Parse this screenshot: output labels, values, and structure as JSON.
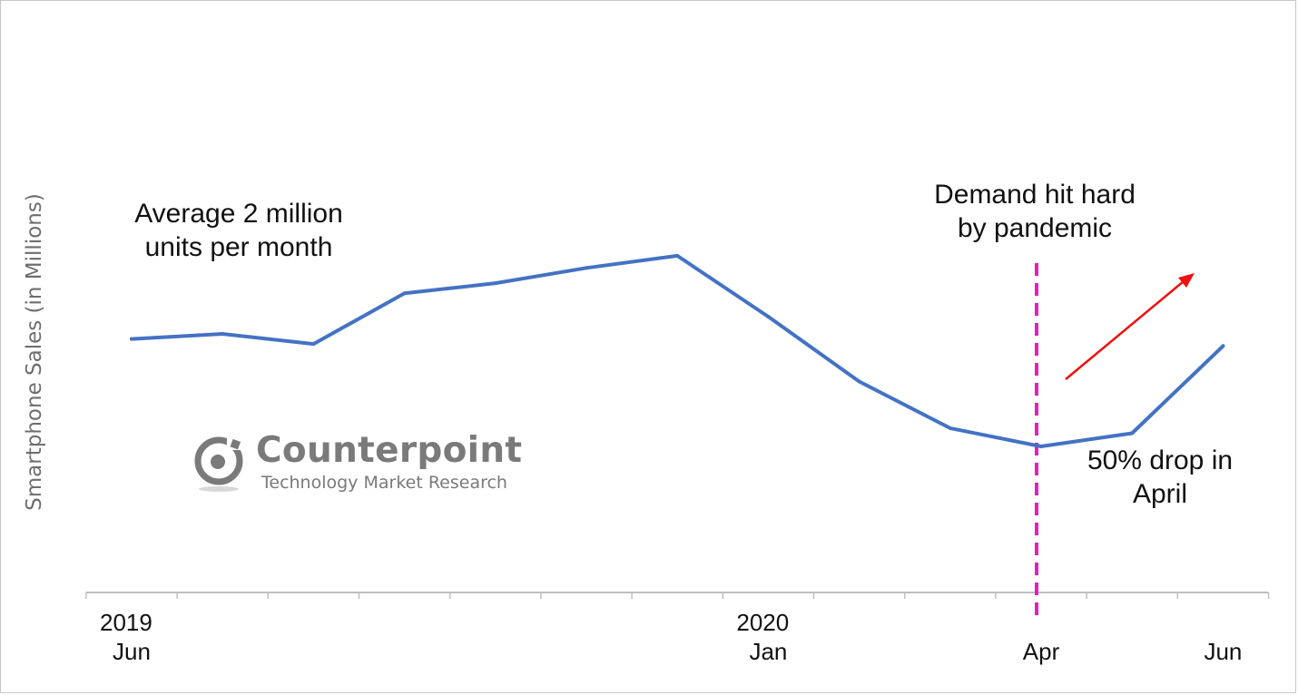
{
  "chart_data": {
    "type": "line",
    "title": "",
    "xlabel": "",
    "ylabel": "Smartphone Sales (in Millions)",
    "x_ticks": [
      {
        "year": "2019",
        "month": "Jun"
      },
      {
        "year": "",
        "month": ""
      },
      {
        "year": "",
        "month": ""
      },
      {
        "year": "",
        "month": ""
      },
      {
        "year": "",
        "month": ""
      },
      {
        "year": "",
        "month": ""
      },
      {
        "year": "",
        "month": ""
      },
      {
        "year": "2020",
        "month": "Jan"
      },
      {
        "year": "",
        "month": ""
      },
      {
        "year": "",
        "month": ""
      },
      {
        "year": "",
        "month": "Apr"
      },
      {
        "year": "",
        "month": ""
      },
      {
        "year": "",
        "month": "Jun"
      }
    ],
    "series": [
      {
        "values": [
          2.0,
          2.05,
          1.95,
          2.45,
          2.55,
          2.7,
          2.82,
          2.22,
          1.58,
          1.12,
          0.94,
          1.07,
          1.93
        ],
        "color": "#4472c4"
      }
    ],
    "ylim": [
      -0.5,
      4.0
    ],
    "grid": false,
    "legend": "none",
    "marker_line": {
      "x_index": 9.95,
      "color": "#e020c0",
      "style": "dashed"
    },
    "arrow": {
      "color": "#ee1111",
      "direction": "up-right"
    },
    "annotations": [
      {
        "id": "avg",
        "lines": [
          "Average 2 million",
          "units per month"
        ]
      },
      {
        "id": "demand",
        "lines": [
          "Demand hit hard",
          "by pandemic"
        ]
      },
      {
        "id": "drop",
        "lines": [
          "50% drop in",
          "April"
        ]
      }
    ]
  },
  "brand": {
    "name": "Counterpoint",
    "tagline": "Technology Market Research",
    "icon": "counterpoint-logo-icon"
  }
}
